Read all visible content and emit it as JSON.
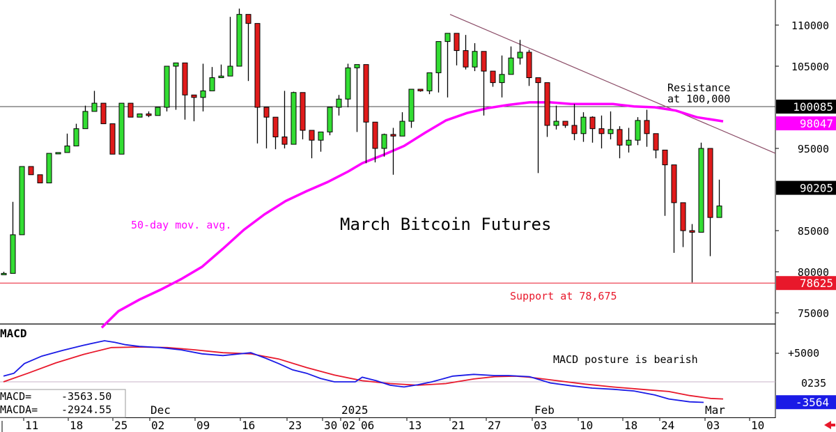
{
  "chart_data": {
    "type": "candlestick",
    "title": "March Bitcoin Futures",
    "yticks": [
      "110000",
      "105000",
      "95000",
      "85000",
      "80000",
      "75000"
    ],
    "ylim": [
      73000,
      112500
    ],
    "x_date_labels": [
      "11",
      "18",
      "25",
      "02",
      "09",
      "16",
      "23",
      "30",
      "02",
      "06",
      "13",
      "21",
      "27",
      "03",
      "10",
      "18",
      "24",
      "03",
      "10"
    ],
    "x_month_labels": [
      "Dec",
      "2025",
      "Feb",
      "Mar"
    ],
    "price_tags": {
      "last": {
        "label": "90205",
        "value": 90205,
        "color": "#000000"
      },
      "resistance": {
        "label": "100085",
        "value": 100085,
        "color": "#000000"
      },
      "ma": {
        "label": "98047",
        "value": 98047,
        "color": "#ff00ff"
      },
      "support": {
        "label": "78625",
        "value": 78625,
        "color": "#e8182b"
      }
    },
    "annotations": {
      "ma_label": "50-day mov. avg.",
      "resistance_line1": "Resistance",
      "resistance_line2": "at 100,000",
      "support_label": "Support at 78,675"
    },
    "candles": [
      [
        80000,
        79800,
        79700,
        80000
      ],
      [
        80000,
        84500,
        84200,
        88500
      ],
      [
        80000,
        92800,
        92800,
        92800
      ],
      [
        80000,
        91800,
        91800,
        91800
      ],
      [
        80000,
        90800,
        90800,
        90800
      ],
      [
        80000,
        94400,
        94400,
        94400
      ],
      [
        80000,
        94500,
        94500,
        94500
      ],
      [
        80000,
        95300,
        95300,
        96800
      ],
      [
        80000,
        97400,
        96800,
        98000
      ],
      [
        80000,
        99500,
        99500,
        100200
      ],
      [
        80000,
        100500,
        100500,
        102000
      ],
      [
        80000,
        98000,
        98000,
        98000
      ],
      [
        80000,
        94300,
        94300,
        94300
      ],
      [
        80000,
        100500,
        100500,
        100500
      ],
      [
        80000,
        98800,
        98800,
        99900
      ],
      [
        80000,
        99200,
        99200,
        99200
      ],
      [
        80000,
        99000,
        98800,
        99500
      ],
      [
        80000,
        100000,
        99000,
        100000
      ],
      [
        80000,
        105000,
        99500,
        105000
      ],
      [
        80000,
        105400,
        99700,
        105400
      ],
      [
        80000,
        101500,
        98500,
        101500
      ],
      [
        80000,
        101200,
        98300,
        101200
      ],
      [
        80000,
        102000,
        99500,
        105300
      ],
      [
        80000,
        103600,
        103400,
        104900
      ],
      [
        80000,
        103800,
        103700,
        105200
      ],
      [
        80000,
        105000,
        105000,
        111000
      ],
      [
        80000,
        111300,
        111300,
        112000
      ],
      [
        80000,
        110200,
        103200,
        110200
      ],
      [
        80000,
        100000,
        95600,
        101500
      ],
      [
        80000,
        98800,
        95000,
        99300
      ],
      [
        80000,
        96400,
        94900,
        97500
      ],
      [
        80000,
        95500,
        95000,
        102000
      ],
      [
        80000,
        101800,
        96500,
        101900
      ],
      [
        80000,
        97200,
        96100,
        98400
      ],
      [
        80000,
        96000,
        93800,
        96000
      ],
      [
        80000,
        97000,
        94600,
        97000
      ],
      [
        80000,
        100000,
        96600,
        100000
      ],
      [
        80000,
        101000,
        99000,
        101500
      ],
      [
        80000,
        104800,
        100000,
        105300
      ],
      [
        80000,
        105200,
        97000,
        105200
      ],
      [
        80000,
        98200,
        93200,
        98200
      ],
      [
        80000,
        95000,
        93300,
        96800
      ],
      [
        80000,
        96700,
        94000,
        96800
      ],
      [
        80000,
        96500,
        91800,
        97500
      ],
      [
        80000,
        98300,
        97300,
        99400
      ],
      [
        80000,
        102200,
        97500,
        102200
      ],
      [
        80000,
        102000,
        101900,
        102000
      ],
      [
        80000,
        104200,
        101600,
        104200
      ],
      [
        80000,
        108000,
        101800,
        108000
      ],
      [
        80000,
        109000,
        101200,
        109000
      ],
      [
        80000,
        106900,
        105100,
        107600
      ],
      [
        80000,
        104900,
        104600,
        108800
      ],
      [
        80000,
        106800,
        104400,
        107800
      ],
      [
        80000,
        104400,
        99000,
        105000
      ],
      [
        80000,
        103000,
        102500,
        103300
      ],
      [
        80000,
        104000,
        101200,
        106300
      ],
      [
        80000,
        106000,
        105000,
        107400
      ],
      [
        80000,
        106700,
        105200,
        108200
      ],
      [
        80000,
        103600,
        102600,
        107000
      ],
      [
        80000,
        103000,
        92000,
        103500
      ],
      [
        80000,
        97800,
        96400,
        102700
      ],
      [
        80000,
        98300,
        97300,
        100200
      ],
      [
        80000,
        97800,
        97500,
        98200
      ],
      [
        80000,
        96800,
        96000,
        100400
      ],
      [
        80000,
        98800,
        95800,
        99400
      ],
      [
        80000,
        97400,
        95700,
        98900
      ],
      [
        80000,
        96800,
        95000,
        99000
      ],
      [
        80000,
        97300,
        96100,
        99500
      ],
      [
        80000,
        95400,
        93800,
        97700
      ],
      [
        80000,
        96000,
        94500,
        97500
      ],
      [
        80000,
        98400,
        95400,
        98800
      ],
      [
        80000,
        96800,
        95200,
        99700
      ],
      [
        80000,
        94800,
        93800,
        95400
      ],
      [
        80000,
        93000,
        86800,
        93000
      ],
      [
        80000,
        88400,
        82300,
        89600
      ],
      [
        80000,
        85000,
        83000,
        87100
      ],
      [
        80000,
        84800,
        78700,
        85800
      ],
      [
        80000,
        95000,
        85500,
        95700
      ],
      [
        80000,
        86600,
        81900,
        89600
      ],
      [
        80000,
        88000,
        86600,
        91200
      ]
    ],
    "ma_series": [
      [
        146.0,
        73200
      ],
      [
        170,
        75200
      ],
      [
        200,
        76600
      ],
      [
        230,
        77800
      ],
      [
        260,
        79100
      ],
      [
        290,
        80600
      ],
      [
        320,
        82800
      ],
      [
        350,
        85100
      ],
      [
        380,
        87000
      ],
      [
        410,
        88600
      ],
      [
        440,
        89800
      ],
      [
        470,
        90900
      ],
      [
        500,
        92200
      ],
      [
        520,
        93200
      ],
      [
        550,
        94200
      ],
      [
        580,
        95300
      ],
      [
        610,
        96900
      ],
      [
        640,
        98400
      ],
      [
        670,
        99300
      ],
      [
        700,
        99900
      ],
      [
        730,
        100300
      ],
      [
        760,
        100600
      ],
      [
        790,
        100600
      ],
      [
        820,
        100400
      ],
      [
        850,
        100400
      ],
      [
        880,
        100400
      ],
      [
        910,
        100100
      ],
      [
        940,
        100000
      ],
      [
        970,
        99600
      ],
      [
        1000,
        98800
      ],
      [
        1038,
        98300
      ]
    ],
    "macd": {
      "title": "MACD",
      "ylim": [
        -4600,
        9200
      ],
      "yticks": [
        "+5000"
      ],
      "ytick_partial": "0235",
      "tag": {
        "label": "-3564",
        "value": -3564
      },
      "macd_label": "MACD=",
      "macd_value": "-3563.50",
      "macda_label": "MACDA=",
      "macda_value": "-2924.55",
      "annotation": "MACD posture is bearish",
      "macd_series": [
        [
          5,
          1000
        ],
        [
          20,
          1500
        ],
        [
          35,
          3200
        ],
        [
          60,
          4500
        ],
        [
          90,
          5500
        ],
        [
          120,
          6400
        ],
        [
          150,
          7200
        ],
        [
          165,
          6900
        ],
        [
          180,
          6500
        ],
        [
          200,
          6200
        ],
        [
          230,
          6000
        ],
        [
          260,
          5600
        ],
        [
          290,
          4900
        ],
        [
          320,
          4600
        ],
        [
          360,
          5100
        ],
        [
          380,
          4200
        ],
        [
          400,
          3200
        ],
        [
          420,
          2100
        ],
        [
          440,
          1500
        ],
        [
          460,
          600
        ],
        [
          480,
          0
        ],
        [
          510,
          0
        ],
        [
          520,
          800
        ],
        [
          540,
          200
        ],
        [
          560,
          -600
        ],
        [
          580,
          -900
        ],
        [
          600,
          -500
        ],
        [
          620,
          0
        ],
        [
          650,
          1000
        ],
        [
          680,
          1300
        ],
        [
          710,
          1100
        ],
        [
          730,
          1100
        ],
        [
          760,
          900
        ],
        [
          790,
          -200
        ],
        [
          820,
          -700
        ],
        [
          850,
          -1100
        ],
        [
          880,
          -1300
        ],
        [
          910,
          -1600
        ],
        [
          940,
          -2300
        ],
        [
          960,
          -3000
        ],
        [
          990,
          -3500
        ],
        [
          1010,
          -3600
        ]
      ],
      "macda_series": [
        [
          5,
          0
        ],
        [
          40,
          1500
        ],
        [
          80,
          3300
        ],
        [
          120,
          4800
        ],
        [
          160,
          6000
        ],
        [
          200,
          6100
        ],
        [
          240,
          6000
        ],
        [
          280,
          5600
        ],
        [
          320,
          5100
        ],
        [
          360,
          4900
        ],
        [
          400,
          4000
        ],
        [
          440,
          2500
        ],
        [
          480,
          1200
        ],
        [
          520,
          200
        ],
        [
          560,
          -300
        ],
        [
          600,
          -600
        ],
        [
          640,
          -300
        ],
        [
          680,
          500
        ],
        [
          710,
          900
        ],
        [
          740,
          1000
        ],
        [
          760,
          800
        ],
        [
          800,
          200
        ],
        [
          840,
          -400
        ],
        [
          880,
          -900
        ],
        [
          920,
          -1300
        ],
        [
          960,
          -1700
        ],
        [
          990,
          -2400
        ],
        [
          1020,
          -2900
        ],
        [
          1038,
          -3000
        ]
      ]
    }
  }
}
